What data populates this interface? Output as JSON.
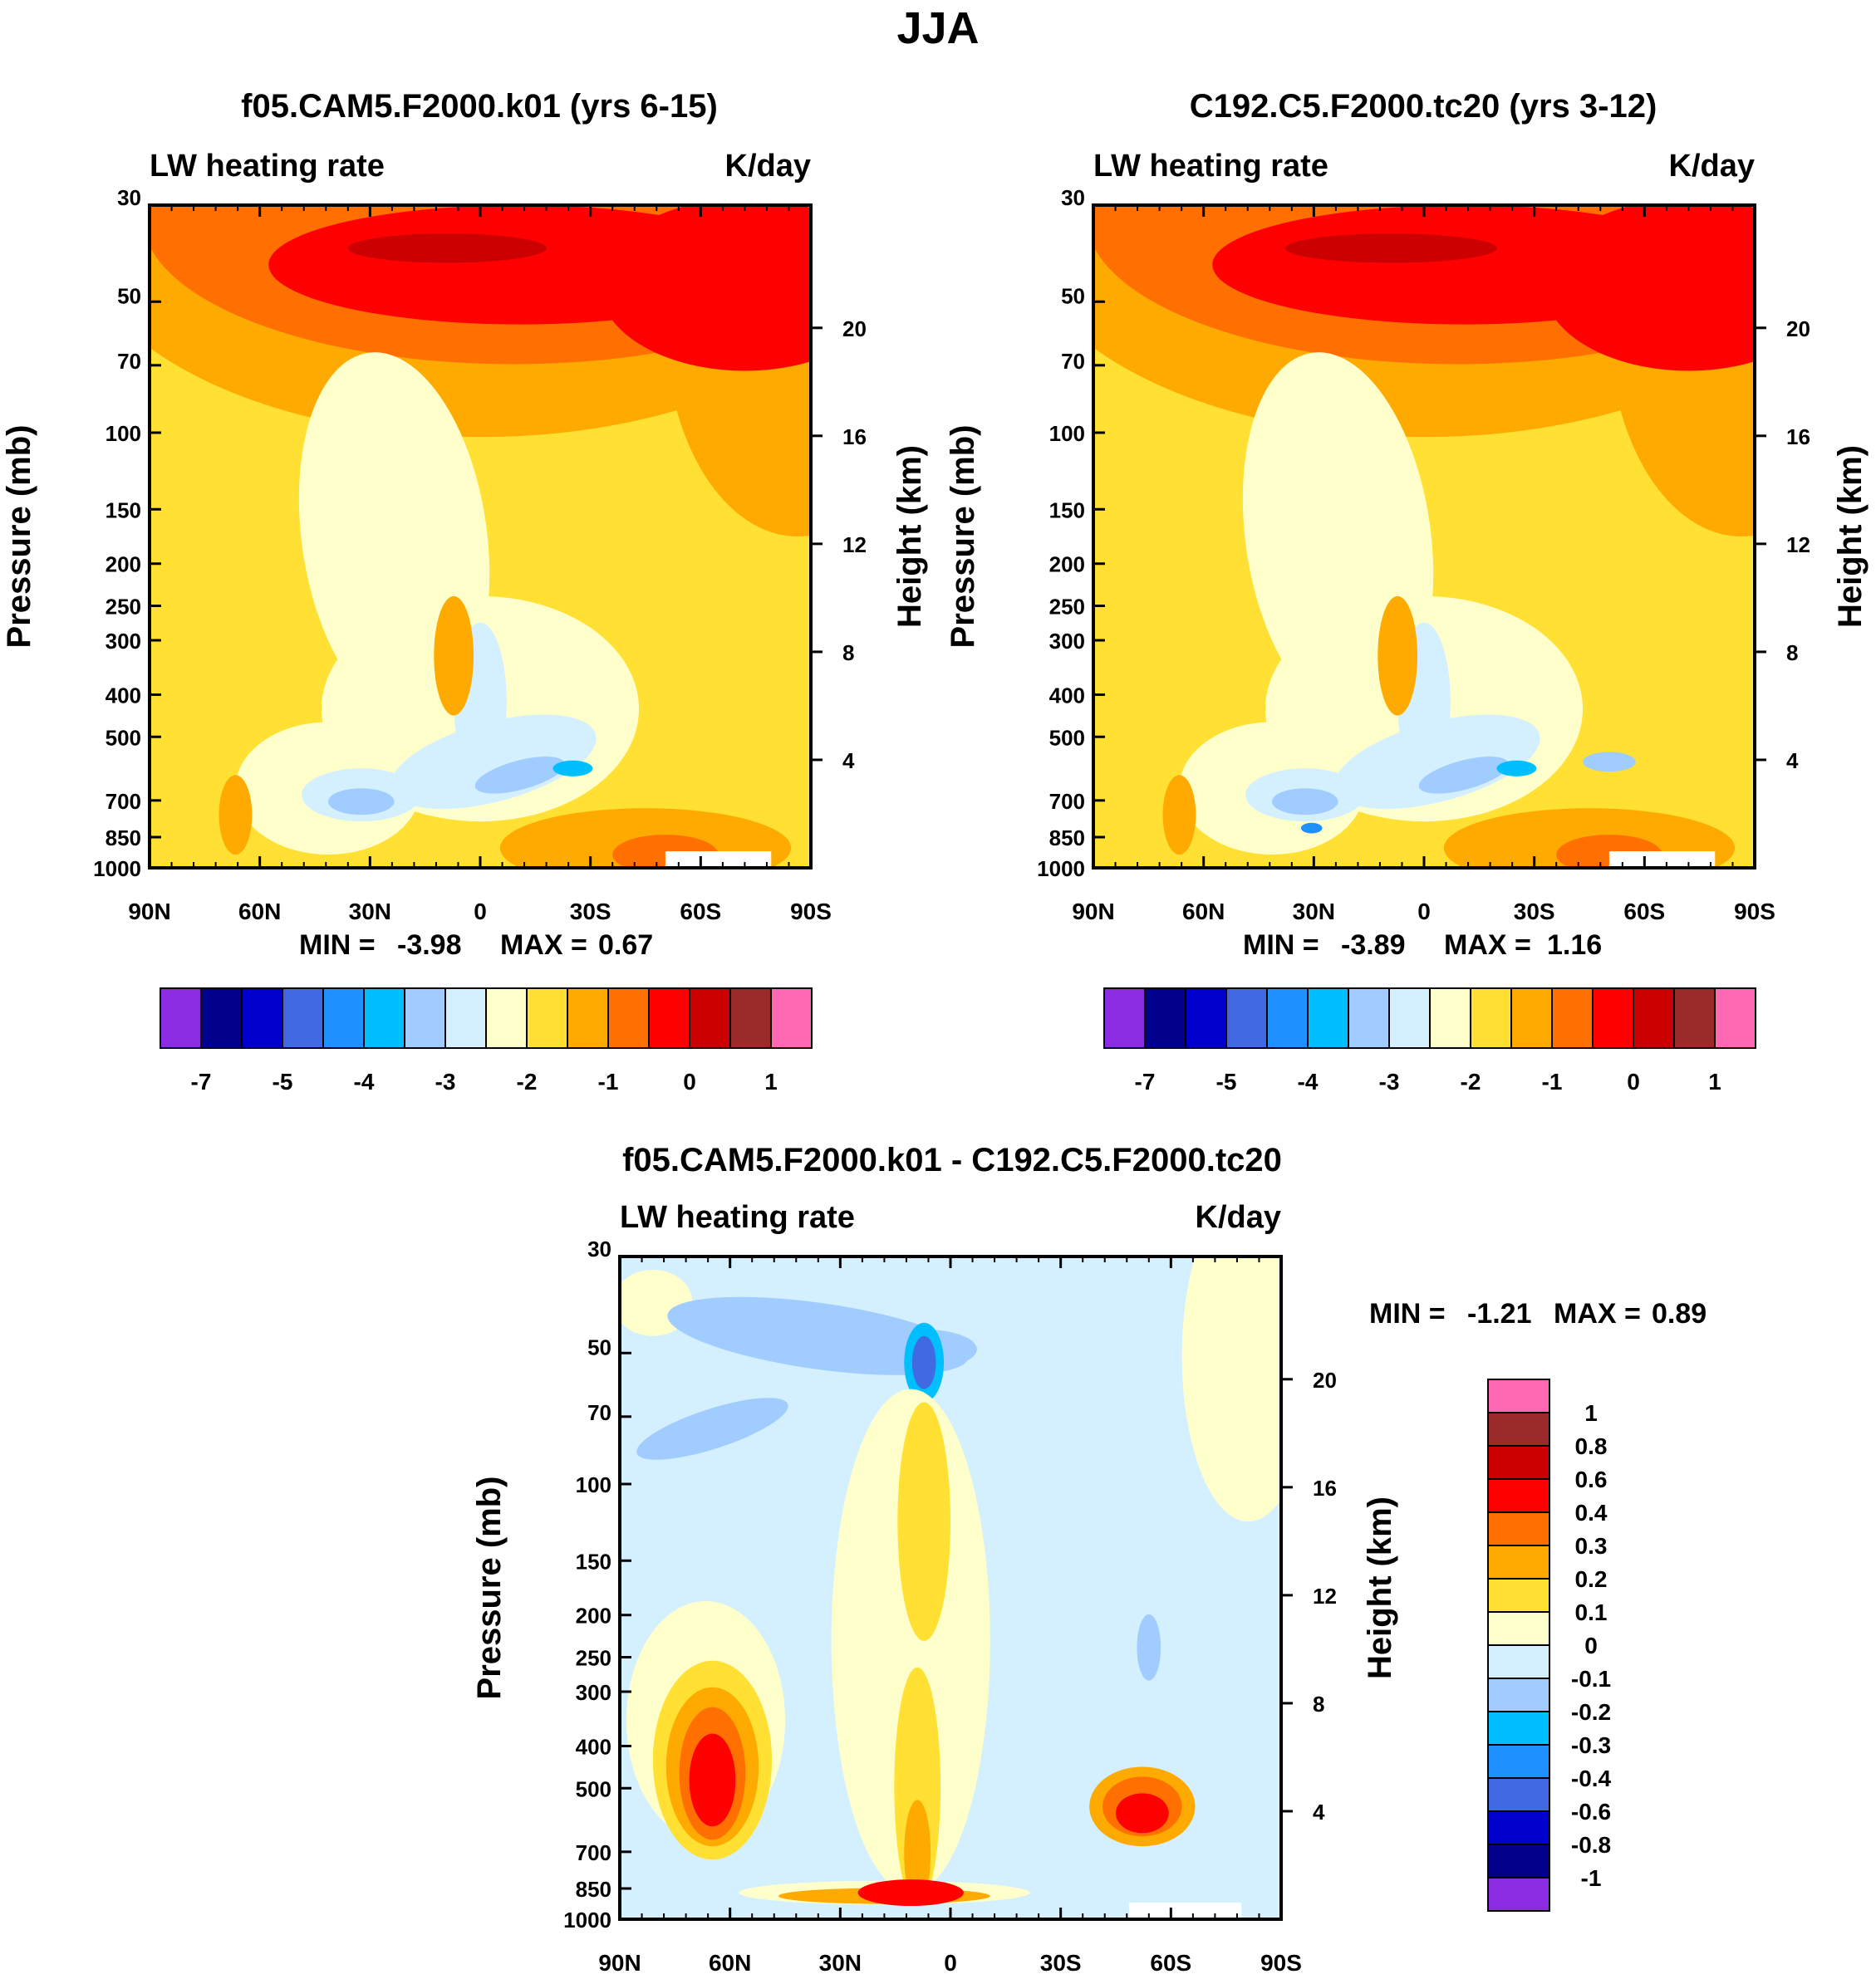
{
  "title": "JJA",
  "colors": {
    "abs_levels": [
      "#8B2BE2",
      "#00008B",
      "#0000CD",
      "#4169E1",
      "#1E90FF",
      "#00BFFF",
      "#A0CCFF",
      "#D4F0FF",
      "#FFFFCC",
      "#FFE033",
      "#FFAA00",
      "#FF7000",
      "#FF0000",
      "#CC0000",
      "#9B2A2A",
      "#FF69B4"
    ],
    "diff_levels": [
      "#8B2BE2",
      "#00008B",
      "#0000CD",
      "#4169E1",
      "#1E90FF",
      "#00BFFF",
      "#A0CCFF",
      "#D4F0FF",
      "#FFFFCC",
      "#FFE033",
      "#FFAA00",
      "#FF7000",
      "#FF0000",
      "#CC0000",
      "#9B2A2A",
      "#FF69B4"
    ]
  },
  "chart_data": [
    {
      "type": "heatmap",
      "title": "f05.CAM5.F2000.k01 (yrs 6-15)",
      "left_label": "LW heating rate",
      "right_label": "K/day",
      "ylabel": "Pressure (mb)",
      "y2label": "Height (km)",
      "x_ticks": [
        "90N",
        "60N",
        "30N",
        "0",
        "30S",
        "60S",
        "90S"
      ],
      "y_ticks": [
        "30",
        "50",
        "70",
        "100",
        "150",
        "200",
        "250",
        "300",
        "400",
        "500",
        "700",
        "850",
        "1000"
      ],
      "y_values": [
        30,
        50,
        70,
        100,
        150,
        200,
        250,
        300,
        400,
        500,
        700,
        850,
        1000
      ],
      "y2_ticks": [
        "20",
        "16",
        "12",
        "8",
        "4"
      ],
      "y2_values": [
        20,
        16,
        12,
        8,
        4
      ],
      "min_label": "MIN =",
      "min_value": "-3.98",
      "max_label": "MAX =",
      "max_value": "0.67",
      "colorbar_labels": [
        "-7",
        "-5",
        "-4",
        "-3",
        "-2",
        "-1",
        "0",
        "1"
      ],
      "variant": "a"
    },
    {
      "type": "heatmap",
      "title": "C192.C5.F2000.tc20 (yrs 3-12)",
      "left_label": "LW heating rate",
      "right_label": "K/day",
      "ylabel": "Pressure (mb)",
      "y2label": "Height (km)",
      "x_ticks": [
        "90N",
        "60N",
        "30N",
        "0",
        "30S",
        "60S",
        "90S"
      ],
      "y_ticks": [
        "30",
        "50",
        "70",
        "100",
        "150",
        "200",
        "250",
        "300",
        "400",
        "500",
        "700",
        "850",
        "1000"
      ],
      "y_values": [
        30,
        50,
        70,
        100,
        150,
        200,
        250,
        300,
        400,
        500,
        700,
        850,
        1000
      ],
      "y2_ticks": [
        "20",
        "16",
        "12",
        "8",
        "4"
      ],
      "y2_values": [
        20,
        16,
        12,
        8,
        4
      ],
      "min_label": "MIN =",
      "min_value": "-3.89",
      "max_label": "MAX =",
      "max_value": "1.16",
      "colorbar_labels": [
        "-7",
        "-5",
        "-4",
        "-3",
        "-2",
        "-1",
        "0",
        "1"
      ],
      "variant": "b"
    },
    {
      "type": "heatmap",
      "title": "f05.CAM5.F2000.k01 - C192.C5.F2000.tc20",
      "left_label": "LW heating rate",
      "right_label": "K/day",
      "ylabel": "Pressure (mb)",
      "y2label": "Height (km)",
      "x_ticks": [
        "90N",
        "60N",
        "30N",
        "0",
        "30S",
        "60S",
        "90S"
      ],
      "y_ticks": [
        "30",
        "50",
        "70",
        "100",
        "150",
        "200",
        "250",
        "300",
        "400",
        "500",
        "700",
        "850",
        "1000"
      ],
      "y_values": [
        30,
        50,
        70,
        100,
        150,
        200,
        250,
        300,
        400,
        500,
        700,
        850,
        1000
      ],
      "y2_ticks": [
        "20",
        "16",
        "12",
        "8",
        "4"
      ],
      "y2_values": [
        20,
        16,
        12,
        8,
        4
      ],
      "min_label": "MIN =",
      "min_value": "-1.21",
      "max_label": "MAX =",
      "max_value": "0.89",
      "colorbar_labels": [
        "1",
        "0.8",
        "0.6",
        "0.4",
        "0.3",
        "0.2",
        "0.1",
        "0",
        "-0.1",
        "-0.2",
        "-0.3",
        "-0.4",
        "-0.6",
        "-0.8",
        "-1"
      ],
      "variant": "diff"
    }
  ]
}
